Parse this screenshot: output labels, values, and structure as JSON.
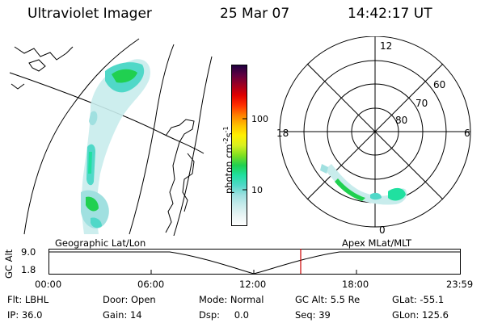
{
  "header": {
    "title": "Ultraviolet Imager",
    "date": "25 Mar 07",
    "time": "14:42:17 UT"
  },
  "colorbar": {
    "label": "photon cm",
    "label_exp1": "-2",
    "label_mid": "s",
    "label_exp2": "-1",
    "ticks": [
      "100",
      "10"
    ],
    "colors": [
      "#ffffff",
      "#e8f4f4",
      "#c8ecec",
      "#a0e0e0",
      "#50d8c8",
      "#20e0a0",
      "#20d050",
      "#80e020",
      "#d8f020",
      "#fff000",
      "#ffc000",
      "#ff8000",
      "#ff3000",
      "#e00000",
      "#a00020",
      "#600040",
      "#200040"
    ]
  },
  "polar": {
    "labels": [
      "12",
      "60",
      "70",
      "80",
      "18",
      "6",
      "0"
    ]
  },
  "timeline": {
    "left_label": "Geographic Lat/Lon",
    "right_label": "Apex MLat/MLT",
    "axis_title": "GC Alt",
    "ytick_top": "9.0",
    "ytick_bottom": "1.8",
    "xticks": [
      "00:00",
      "06:00",
      "12:00",
      "18:00",
      "23:59"
    ],
    "marker_color": "#cc0000"
  },
  "status": {
    "row1": [
      {
        "key": "Flt:",
        "value": "LBHL"
      },
      {
        "key": "Door:",
        "value": "Open"
      },
      {
        "key": "Mode:",
        "value": "Normal"
      },
      {
        "key": "GC Alt:",
        "value": "5.5 Re"
      },
      {
        "key": "GLat:",
        "value": "-55.1"
      }
    ],
    "row2": [
      {
        "key": "IP:",
        "value": "36.0"
      },
      {
        "key": "Gain:",
        "value": "14"
      },
      {
        "key": "Dsp:",
        "value": "0.0"
      },
      {
        "key": "Seq:",
        "value": "39"
      },
      {
        "key": "GLon:",
        "value": "125.6"
      }
    ]
  }
}
